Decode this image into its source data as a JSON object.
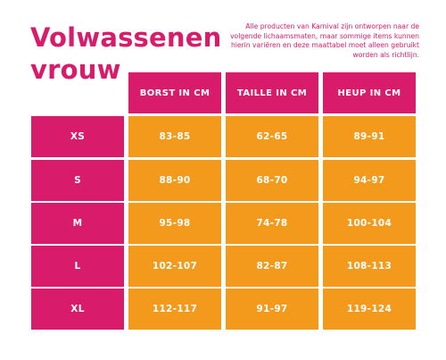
{
  "title": {
    "line1": "Volwassenen",
    "line2": "vrouw"
  },
  "note": "Alle producten van Karnival zijn ontworpen naar de volgende lichaamsmaten, maar sommige items kunnen hierin variëren en deze maattabel moet alleen gebruikt worden als richtlijn.",
  "colors": {
    "pink": "#d81b6a",
    "orange": "#f39a1d"
  },
  "table": {
    "headers": [
      "BORST IN CM",
      "TAILLE IN CM",
      "HEUP IN CM"
    ],
    "rows": [
      {
        "size": "XS",
        "values": [
          "83-85",
          "62-65",
          "89-91"
        ]
      },
      {
        "size": "S",
        "values": [
          "88-90",
          "68-70",
          "94-97"
        ]
      },
      {
        "size": "M",
        "values": [
          "95-98",
          "74-78",
          "100-104"
        ]
      },
      {
        "size": "L",
        "values": [
          "102-107",
          "82-87",
          "108-113"
        ]
      },
      {
        "size": "XL",
        "values": [
          "112-117",
          "91-97",
          "119-124"
        ]
      }
    ]
  }
}
